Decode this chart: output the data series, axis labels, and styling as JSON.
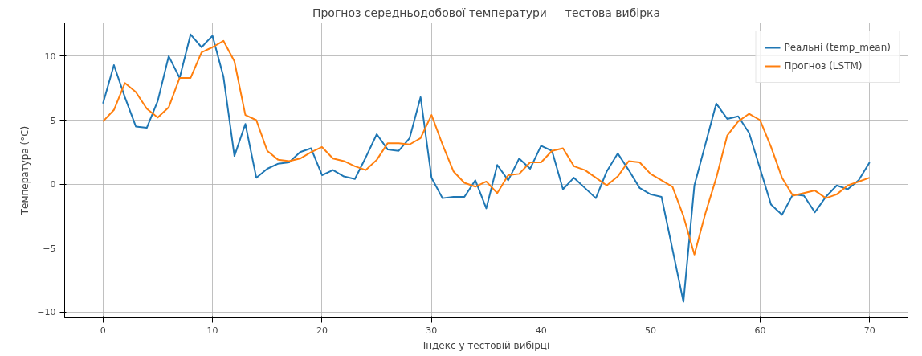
{
  "chart_data": {
    "type": "line",
    "title": "Прогноз середньодобової температури — тестова вибірка",
    "xlabel": "Індекс у тестовій вибірці",
    "ylabel": "Температура (°C)",
    "x": [
      0,
      1,
      2,
      3,
      4,
      5,
      6,
      7,
      8,
      9,
      10,
      11,
      12,
      13,
      14,
      15,
      16,
      17,
      18,
      19,
      20,
      21,
      22,
      23,
      24,
      25,
      26,
      27,
      28,
      29,
      30,
      31,
      32,
      33,
      34,
      35,
      36,
      37,
      38,
      39,
      40,
      41,
      42,
      43,
      44,
      45,
      46,
      47,
      48,
      49,
      50,
      51,
      52,
      53,
      54,
      55,
      56,
      57,
      58,
      59,
      60,
      61,
      62,
      63,
      64,
      65,
      66,
      67,
      68,
      69,
      70
    ],
    "series": [
      {
        "name": "Реальні (temp_mean)",
        "color": "#1f77b4",
        "values": [
          6.3,
          9.3,
          6.8,
          4.5,
          4.4,
          6.5,
          10.0,
          8.3,
          11.7,
          10.7,
          11.6,
          8.4,
          2.2,
          4.7,
          0.5,
          1.2,
          1.6,
          1.7,
          2.5,
          2.8,
          0.7,
          1.1,
          0.6,
          0.4,
          2.1,
          3.9,
          2.7,
          2.6,
          3.6,
          6.8,
          0.5,
          -1.1,
          -1.0,
          -1.0,
          0.3,
          -1.9,
          1.5,
          0.3,
          2.0,
          1.2,
          3.0,
          2.6,
          -0.4,
          0.5,
          -0.3,
          -1.1,
          1.0,
          2.4,
          1.1,
          -0.3,
          -0.8,
          -1.0,
          -5.1,
          -9.2,
          -0.1,
          3.1,
          6.3,
          5.1,
          5.3,
          4.0,
          1.2,
          -1.6,
          -2.4,
          -0.8,
          -0.9,
          -2.2,
          -1.0,
          -0.1,
          -0.4,
          0.3,
          1.7
        ]
      },
      {
        "name": "Прогноз (LSTM)",
        "color": "#ff7f0e",
        "values": [
          4.9,
          5.8,
          7.9,
          7.2,
          5.9,
          5.2,
          6.0,
          8.3,
          8.3,
          10.3,
          10.7,
          11.2,
          9.6,
          5.4,
          5.0,
          2.6,
          1.9,
          1.8,
          2.0,
          2.5,
          2.9,
          2.0,
          1.8,
          1.4,
          1.1,
          1.9,
          3.2,
          3.2,
          3.1,
          3.6,
          5.4,
          3.1,
          1.0,
          0.1,
          -0.2,
          0.2,
          -0.7,
          0.7,
          0.8,
          1.7,
          1.7,
          2.6,
          2.8,
          1.4,
          1.1,
          0.5,
          -0.1,
          0.6,
          1.8,
          1.7,
          0.8,
          0.3,
          -0.2,
          -2.5,
          -5.5,
          -2.3,
          0.5,
          3.8,
          4.9,
          5.5,
          5.0,
          2.9,
          0.5,
          -0.9,
          -0.7,
          -0.5,
          -1.1,
          -0.8,
          -0.1,
          0.2,
          0.5
        ]
      }
    ],
    "xlim": [
      -3.5,
      73.5
    ],
    "ylim": [
      -10.45,
      12.6
    ],
    "xticks": [
      0,
      10,
      20,
      30,
      40,
      50,
      60,
      70
    ],
    "yticks": [
      -10,
      -5,
      0,
      5,
      10
    ],
    "grid": true,
    "legend": "top right",
    "line_style": "solid"
  }
}
